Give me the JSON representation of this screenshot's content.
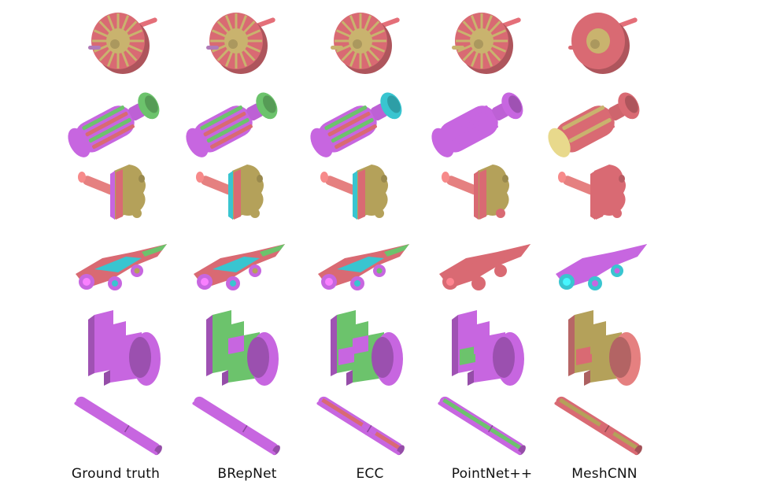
{
  "figure": {
    "columns": [
      "Ground truth",
      "BRepNet",
      "ECC",
      "PointNet++",
      "MeshCNN"
    ],
    "rows": [
      {
        "object": "motor-rotor",
        "column_schemes": [
          {
            "main": "#d96a73",
            "parts": [
              "#c9b36e",
              "#c9b36e",
              "#c9b36e",
              "#b07ab8"
            ]
          },
          {
            "main": "#d96a73",
            "parts": [
              "#c9b36e",
              "#c9b36e",
              "#c9b36e",
              "#b07ab8"
            ]
          },
          {
            "main": "#d96a73",
            "parts": [
              "#c9b36e",
              "#c9b36e",
              "#c9b36e",
              "#c9b36e"
            ]
          },
          {
            "main": "#d96a73",
            "parts": [
              "#c9b36e",
              "#c9b36e",
              "#c9b36e",
              "#c9b36e"
            ]
          },
          {
            "main": "#d96a73",
            "parts": [
              "#d96a73",
              "#d96a73",
              "#c9b36e",
              "#d96a73"
            ]
          }
        ]
      },
      {
        "object": "screwdriver-handle",
        "column_schemes": [
          {
            "main": "#c766e0",
            "parts": [
              "#6cc36c",
              "#d96a73",
              "#6cc36c",
              "#c766e0"
            ]
          },
          {
            "main": "#c766e0",
            "parts": [
              "#6cc36c",
              "#d96a73",
              "#6cc36c",
              "#c766e0"
            ]
          },
          {
            "main": "#c766e0",
            "parts": [
              "#6cc36c",
              "#d96a73",
              "#39c5d0",
              "#c766e0"
            ]
          },
          {
            "main": "#c766e0",
            "parts": [
              "#c766e0",
              "#c766e0",
              "#c766e0",
              "#c766e0"
            ]
          },
          {
            "main": "#d96a73",
            "parts": [
              "#c9b36e",
              "#d96a73",
              "#d96a73",
              "#e8d98c"
            ]
          }
        ]
      },
      {
        "object": "hinge-bracket",
        "column_schemes": [
          {
            "main": "#e58080",
            "parts": [
              "#b4a15a",
              "#c766e0",
              "#d96a73",
              "#b4a15a"
            ]
          },
          {
            "main": "#e58080",
            "parts": [
              "#b4a15a",
              "#39c5d0",
              "#d96a73",
              "#b4a15a"
            ]
          },
          {
            "main": "#e58080",
            "parts": [
              "#b4a15a",
              "#39c5d0",
              "#d96a73",
              "#b4a15a"
            ]
          },
          {
            "main": "#e58080",
            "parts": [
              "#b4a15a",
              "#d96a73",
              "#d96a73",
              "#d96a73"
            ]
          },
          {
            "main": "#e58080",
            "parts": [
              "#d96a73",
              "#d96a73",
              "#d96a73",
              "#d96a73"
            ]
          }
        ]
      },
      {
        "object": "race-car",
        "column_schemes": [
          {
            "main": "#d96a73",
            "parts": [
              "#39c5d0",
              "#6cc36c",
              "#c766e0",
              "#b4a15a"
            ]
          },
          {
            "main": "#d96a73",
            "parts": [
              "#39c5d0",
              "#6cc36c",
              "#c766e0",
              "#b4a15a"
            ]
          },
          {
            "main": "#d96a73",
            "parts": [
              "#39c5d0",
              "#6cc36c",
              "#c766e0",
              "#6cc36c"
            ]
          },
          {
            "main": "#d96a73",
            "parts": [
              "#d96a73",
              "#d96a73",
              "#d96a73",
              "#d96a73"
            ]
          },
          {
            "main": "#c766e0",
            "parts": [
              "#c766e0",
              "#c766e0",
              "#39c5d0",
              "#c766e0"
            ]
          }
        ]
      },
      {
        "object": "pipe-fitting",
        "column_schemes": [
          {
            "main": "#c766e0",
            "parts": [
              "#c766e0",
              "#c766e0",
              "#c766e0",
              "#c766e0"
            ]
          },
          {
            "main": "#c766e0",
            "parts": [
              "#6cc36c",
              "#6cc36c",
              "#c766e0",
              "#c766e0"
            ]
          },
          {
            "main": "#c766e0",
            "parts": [
              "#6cc36c",
              "#c766e0",
              "#c766e0",
              "#c766e0"
            ]
          },
          {
            "main": "#c766e0",
            "parts": [
              "#c766e0",
              "#6cc36c",
              "#c766e0",
              "#c766e0"
            ]
          },
          {
            "main": "#e58080",
            "parts": [
              "#b4a15a",
              "#d96a73",
              "#e58080",
              "#b4a15a"
            ]
          }
        ]
      },
      {
        "object": "half-tube",
        "column_schemes": [
          {
            "main": "#c766e0",
            "parts": [
              "#c766e0",
              "#c766e0",
              "#c766e0",
              "#c766e0"
            ]
          },
          {
            "main": "#c766e0",
            "parts": [
              "#c766e0",
              "#c766e0",
              "#c766e0",
              "#c766e0"
            ]
          },
          {
            "main": "#c766e0",
            "parts": [
              "#d96a73",
              "#c766e0",
              "#c766e0",
              "#c766e0"
            ]
          },
          {
            "main": "#c766e0",
            "parts": [
              "#6cc36c",
              "#6cc36c",
              "#c766e0",
              "#c766e0"
            ]
          },
          {
            "main": "#d96a73",
            "parts": [
              "#b4a15a",
              "#d96a73",
              "#d96a73",
              "#d96a73"
            ]
          }
        ]
      }
    ]
  }
}
